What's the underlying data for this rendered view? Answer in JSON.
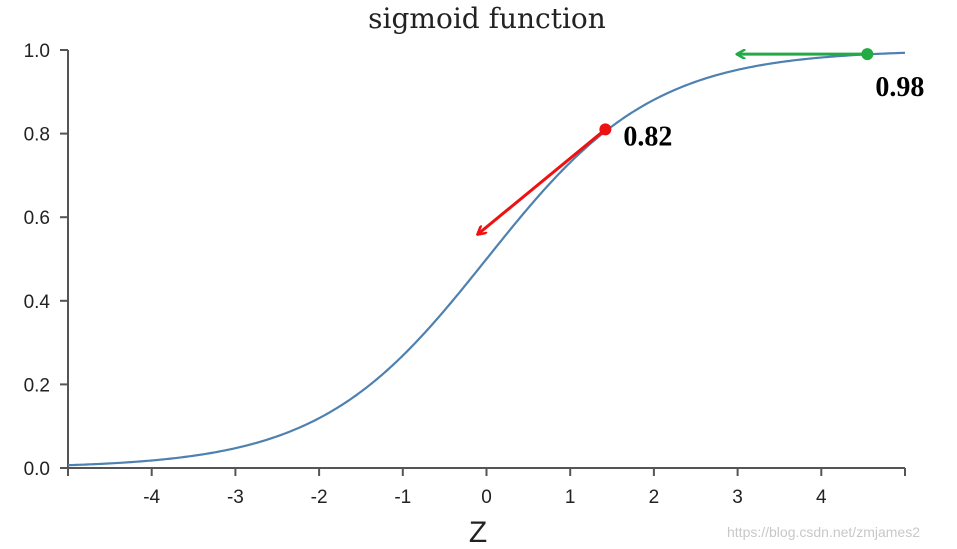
{
  "chart_data": {
    "type": "line",
    "title": "sigmoid function",
    "xlabel": "Z",
    "ylabel": "",
    "xlim": [
      -5,
      5
    ],
    "ylim": [
      0,
      1
    ],
    "x_ticks": [
      -4,
      -3,
      -2,
      -1,
      0,
      1,
      2,
      3,
      4
    ],
    "x_tick_labels": [
      "-4",
      "-3",
      "-2",
      "-1",
      "0",
      "1",
      "2",
      "3",
      "4"
    ],
    "y_ticks": [
      0,
      0.2,
      0.4,
      0.6,
      0.8,
      1.0
    ],
    "y_tick_labels": [
      "0.0",
      "0.2",
      "0.4",
      "0.6",
      "0.8",
      "1.0"
    ],
    "grid": false,
    "series": [
      {
        "function": "sigmoid",
        "x_range": [
          -5,
          5
        ],
        "color": "#4f81b0"
      }
    ],
    "annotations": [
      {
        "x": 1.42,
        "y": 0.81,
        "label": "0.82",
        "color": "#ee1111",
        "arrow_to": [
          -0.1,
          0.56
        ]
      },
      {
        "x": 4.55,
        "y": 0.99,
        "label": "0.98",
        "color": "#22aa44",
        "arrow_to": [
          3.0,
          0.99
        ]
      }
    ]
  },
  "watermark": "https://blog.csdn.net/zmjames2"
}
